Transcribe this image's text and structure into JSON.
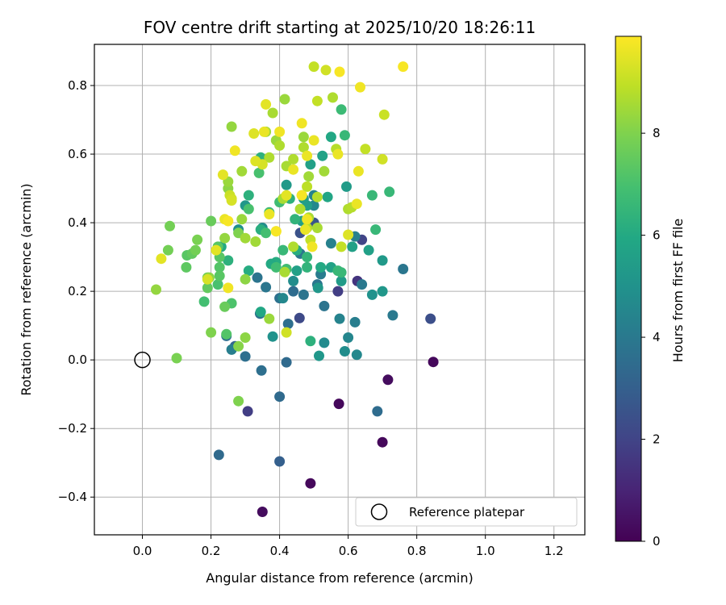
{
  "chart_data": {
    "type": "scatter",
    "title": "FOV centre drift starting at 2025/10/20 18:26:11",
    "xlabel": "Angular distance from reference (arcmin)",
    "ylabel": "Rotation from reference (arcmin)",
    "xlim": [
      -0.14,
      1.29
    ],
    "ylim": [
      -0.51,
      0.92
    ],
    "x_ticks": [
      0.0,
      0.2,
      0.4,
      0.6,
      0.8,
      1.0,
      1.2
    ],
    "x_tick_labels": [
      "0.0",
      "0.2",
      "0.4",
      "0.6",
      "0.8",
      "1.0",
      "1.2"
    ],
    "y_ticks": [
      -0.4,
      -0.2,
      0.0,
      0.2,
      0.4,
      0.6,
      0.8
    ],
    "y_tick_labels": [
      "−0.4",
      "−0.2",
      "0.0",
      "0.2",
      "0.4",
      "0.6",
      "0.8"
    ],
    "grid": true,
    "colorbar": {
      "label": "Hours from first FF file",
      "range": [
        0,
        9.9
      ],
      "ticks": [
        0,
        2,
        4,
        6,
        8
      ],
      "tick_labels": [
        "0",
        "2",
        "4",
        "6",
        "8"
      ],
      "colormap": "viridis"
    },
    "reference_point": {
      "x": 0.0,
      "y": 0.0,
      "label": "Reference platepar"
    },
    "legend": {
      "location": "lower-right",
      "entries": [
        "Reference platepar"
      ]
    },
    "points": [
      [
        0.35,
        -0.443,
        0.3
      ],
      [
        0.49,
        -0.36,
        0.2
      ],
      [
        0.573,
        -0.128,
        0.2
      ],
      [
        0.7,
        -0.24,
        0.2
      ],
      [
        0.716,
        -0.058,
        0.3
      ],
      [
        0.848,
        -0.006,
        0.2
      ],
      [
        0.307,
        -0.15,
        1.8
      ],
      [
        0.84,
        0.12,
        2.4
      ],
      [
        0.458,
        0.122,
        2.2
      ],
      [
        0.57,
        0.2,
        1.8
      ],
      [
        0.627,
        0.23,
        1.5
      ],
      [
        0.64,
        0.35,
        2.0
      ],
      [
        0.46,
        0.37,
        2.5
      ],
      [
        0.5,
        0.4,
        2.6
      ],
      [
        0.4,
        -0.296,
        3.0
      ],
      [
        0.223,
        -0.277,
        3.4
      ],
      [
        0.685,
        -0.15,
        3.5
      ],
      [
        0.4,
        -0.107,
        3.4
      ],
      [
        0.347,
        -0.031,
        3.6
      ],
      [
        0.42,
        -0.007,
        3.4
      ],
      [
        0.3,
        0.01,
        3.6
      ],
      [
        0.27,
        0.04,
        3.2
      ],
      [
        0.245,
        0.07,
        3.6
      ],
      [
        0.343,
        0.135,
        3.7
      ],
      [
        0.425,
        0.105,
        3.6
      ],
      [
        0.53,
        0.157,
        3.8
      ],
      [
        0.4,
        0.18,
        3.7
      ],
      [
        0.335,
        0.24,
        3.8
      ],
      [
        0.36,
        0.212,
        3.9
      ],
      [
        0.44,
        0.2,
        3.5
      ],
      [
        0.47,
        0.19,
        3.8
      ],
      [
        0.51,
        0.22,
        3.9
      ],
      [
        0.46,
        0.31,
        3.9
      ],
      [
        0.52,
        0.25,
        4.1
      ],
      [
        0.55,
        0.34,
        4.3
      ],
      [
        0.64,
        0.22,
        4.0
      ],
      [
        0.73,
        0.13,
        4.0
      ],
      [
        0.76,
        0.265,
        3.9
      ],
      [
        0.62,
        0.11,
        4.2
      ],
      [
        0.62,
        0.36,
        4.3
      ],
      [
        0.5,
        0.48,
        4.4
      ],
      [
        0.26,
        0.03,
        4.2
      ],
      [
        0.5,
        0.45,
        4.6
      ],
      [
        0.575,
        0.12,
        4.4
      ],
      [
        0.6,
        0.065,
        4.5
      ],
      [
        0.625,
        0.015,
        4.6
      ],
      [
        0.53,
        0.05,
        4.7
      ],
      [
        0.59,
        0.025,
        4.8
      ],
      [
        0.44,
        0.23,
        4.8
      ],
      [
        0.41,
        0.18,
        4.6
      ],
      [
        0.28,
        0.38,
        4.9
      ],
      [
        0.35,
        0.385,
        4.8
      ],
      [
        0.38,
        0.068,
        5.0
      ],
      [
        0.3,
        0.45,
        5.2
      ],
      [
        0.67,
        0.19,
        5.0
      ],
      [
        0.7,
        0.2,
        5.2
      ],
      [
        0.7,
        0.29,
        5.3
      ],
      [
        0.66,
        0.32,
        5.6
      ],
      [
        0.58,
        0.23,
        5.4
      ],
      [
        0.515,
        0.012,
        5.2
      ],
      [
        0.512,
        0.21,
        5.2
      ],
      [
        0.55,
        0.27,
        5.7
      ],
      [
        0.595,
        0.505,
        5.4
      ],
      [
        0.612,
        0.33,
        5.6
      ],
      [
        0.42,
        0.51,
        5.3
      ],
      [
        0.45,
        0.26,
        5.6
      ],
      [
        0.47,
        0.47,
        5.4
      ],
      [
        0.465,
        0.405,
        5.5
      ],
      [
        0.48,
        0.45,
        5.5
      ],
      [
        0.49,
        0.57,
        5.6
      ],
      [
        0.525,
        0.595,
        5.7
      ],
      [
        0.55,
        0.65,
        5.9
      ],
      [
        0.54,
        0.475,
        5.8
      ],
      [
        0.52,
        0.27,
        6.0
      ],
      [
        0.45,
        0.32,
        6.1
      ],
      [
        0.39,
        0.285,
        6.1
      ],
      [
        0.375,
        0.28,
        6.0
      ],
      [
        0.31,
        0.26,
        6.1
      ],
      [
        0.345,
        0.14,
        5.9
      ],
      [
        0.23,
        0.33,
        6.0
      ],
      [
        0.25,
        0.29,
        6.3
      ],
      [
        0.31,
        0.48,
        6.3
      ],
      [
        0.345,
        0.59,
        6.3
      ],
      [
        0.345,
        0.38,
        6.2
      ],
      [
        0.43,
        0.47,
        6.3
      ],
      [
        0.49,
        0.055,
        6.3
      ],
      [
        0.48,
        0.27,
        6.4
      ],
      [
        0.445,
        0.41,
        6.4
      ],
      [
        0.48,
        0.3,
        6.5
      ],
      [
        0.68,
        0.38,
        6.6
      ],
      [
        0.67,
        0.48,
        6.6
      ],
      [
        0.72,
        0.49,
        6.6
      ],
      [
        0.58,
        0.73,
        6.7
      ],
      [
        0.59,
        0.655,
        6.6
      ],
      [
        0.57,
        0.26,
        6.6
      ],
      [
        0.58,
        0.255,
        6.6
      ],
      [
        0.4,
        0.46,
        6.8
      ],
      [
        0.41,
        0.32,
        6.6
      ],
      [
        0.37,
        0.43,
        6.8
      ],
      [
        0.39,
        0.27,
        6.8
      ],
      [
        0.42,
        0.265,
        6.8
      ],
      [
        0.36,
        0.37,
        6.9
      ],
      [
        0.31,
        0.44,
        7.0
      ],
      [
        0.34,
        0.545,
        7.0
      ],
      [
        0.22,
        0.22,
        7.0
      ],
      [
        0.225,
        0.27,
        7.2
      ],
      [
        0.18,
        0.17,
        6.9
      ],
      [
        0.26,
        0.165,
        7.1
      ],
      [
        0.225,
        0.245,
        7.3
      ],
      [
        0.225,
        0.3,
        7.3
      ],
      [
        0.22,
        0.33,
        7.3
      ],
      [
        0.245,
        0.075,
        7.2
      ],
      [
        0.2,
        0.405,
        7.6
      ],
      [
        0.13,
        0.305,
        7.3
      ],
      [
        0.145,
        0.31,
        7.5
      ],
      [
        0.128,
        0.27,
        7.4
      ],
      [
        0.19,
        0.21,
        7.5
      ],
      [
        0.19,
        0.24,
        7.7
      ],
      [
        0.24,
        0.155,
        7.6
      ],
      [
        0.075,
        0.32,
        7.8
      ],
      [
        0.08,
        0.39,
        7.8
      ],
      [
        0.155,
        0.32,
        7.8
      ],
      [
        0.16,
        0.35,
        7.9
      ],
      [
        0.1,
        0.005,
        7.9
      ],
      [
        0.2,
        0.08,
        8.0
      ],
      [
        0.28,
        0.04,
        8.1
      ],
      [
        0.28,
        0.37,
        8.0
      ],
      [
        0.3,
        0.065,
        8.2
      ],
      [
        0.28,
        -0.12,
        8.0
      ],
      [
        0.3,
        0.235,
        8.2
      ],
      [
        0.3,
        0.355,
        8.5
      ],
      [
        0.04,
        0.205,
        8.3
      ],
      [
        0.195,
        0.24,
        8.2
      ],
      [
        0.24,
        0.355,
        8.3
      ],
      [
        0.25,
        0.5,
        8.2
      ],
      [
        0.25,
        0.52,
        8.4
      ],
      [
        0.29,
        0.41,
        8.4
      ],
      [
        0.29,
        0.55,
        8.5
      ],
      [
        0.33,
        0.345,
        8.5
      ],
      [
        0.36,
        0.665,
        8.5
      ],
      [
        0.37,
        0.12,
        8.4
      ],
      [
        0.38,
        0.72,
        8.6
      ],
      [
        0.37,
        0.59,
        8.7
      ],
      [
        0.39,
        0.64,
        8.4
      ],
      [
        0.4,
        0.625,
        8.7
      ],
      [
        0.41,
        0.47,
        8.6
      ],
      [
        0.415,
        0.76,
        8.4
      ],
      [
        0.415,
        0.256,
        8.6
      ],
      [
        0.42,
        0.565,
        8.6
      ],
      [
        0.44,
        0.33,
        8.7
      ],
      [
        0.44,
        0.585,
        8.7
      ],
      [
        0.46,
        0.44,
        8.7
      ],
      [
        0.465,
        0.48,
        8.7
      ],
      [
        0.47,
        0.62,
        8.7
      ],
      [
        0.47,
        0.65,
        8.4
      ],
      [
        0.48,
        0.385,
        8.8
      ],
      [
        0.48,
        0.505,
        8.9
      ],
      [
        0.485,
        0.535,
        8.5
      ],
      [
        0.485,
        0.415,
        8.6
      ],
      [
        0.49,
        0.35,
        9.0
      ],
      [
        0.51,
        0.385,
        8.6
      ],
      [
        0.51,
        0.475,
        8.8
      ],
      [
        0.53,
        0.55,
        8.5
      ],
      [
        0.555,
        0.765,
        8.7
      ],
      [
        0.565,
        0.615,
        8.8
      ],
      [
        0.58,
        0.33,
        9.0
      ],
      [
        0.6,
        0.44,
        8.7
      ],
      [
        0.61,
        0.445,
        8.8
      ],
      [
        0.65,
        0.615,
        9.0
      ],
      [
        0.705,
        0.715,
        9.1
      ],
      [
        0.7,
        0.585,
        9.2
      ],
      [
        0.5,
        0.855,
        9.0
      ],
      [
        0.51,
        0.755,
        9.0
      ],
      [
        0.535,
        0.845,
        9.2
      ],
      [
        0.26,
        0.68,
        8.3
      ],
      [
        0.255,
        0.48,
        9.1
      ],
      [
        0.26,
        0.47,
        9.2
      ],
      [
        0.26,
        0.465,
        9.3
      ],
      [
        0.325,
        0.66,
        9.4
      ],
      [
        0.35,
        0.57,
        9.3
      ],
      [
        0.355,
        0.665,
        9.6
      ],
      [
        0.36,
        0.745,
        9.5
      ],
      [
        0.37,
        0.425,
        9.6
      ],
      [
        0.39,
        0.375,
        9.4
      ],
      [
        0.4,
        0.665,
        9.7
      ],
      [
        0.42,
        0.08,
        9.2
      ],
      [
        0.44,
        0.555,
        9.6
      ],
      [
        0.465,
        0.69,
        9.7
      ],
      [
        0.475,
        0.38,
        9.6
      ],
      [
        0.48,
        0.41,
        9.7
      ],
      [
        0.48,
        0.595,
        9.6
      ],
      [
        0.495,
        0.33,
        9.7
      ],
      [
        0.57,
        0.6,
        9.6
      ],
      [
        0.575,
        0.84,
        9.8
      ],
      [
        0.625,
        0.455,
        9.6
      ],
      [
        0.635,
        0.795,
        9.7
      ],
      [
        0.76,
        0.855,
        9.8
      ],
      [
        0.055,
        0.295,
        9.5
      ],
      [
        0.19,
        0.235,
        9.3
      ],
      [
        0.215,
        0.32,
        9.5
      ],
      [
        0.235,
        0.54,
        9.5
      ],
      [
        0.24,
        0.41,
        9.6
      ],
      [
        0.25,
        0.21,
        9.7
      ],
      [
        0.25,
        0.405,
        9.8
      ],
      [
        0.27,
        0.61,
        9.7
      ],
      [
        0.33,
        0.58,
        9.4
      ],
      [
        0.42,
        0.48,
        9.5
      ],
      [
        0.465,
        0.48,
        9.8
      ],
      [
        0.5,
        0.64,
        9.6
      ],
      [
        0.6,
        0.365,
        9.4
      ],
      [
        0.63,
        0.55,
        9.6
      ],
      [
        0.39,
        0.375,
        9.8
      ]
    ]
  }
}
